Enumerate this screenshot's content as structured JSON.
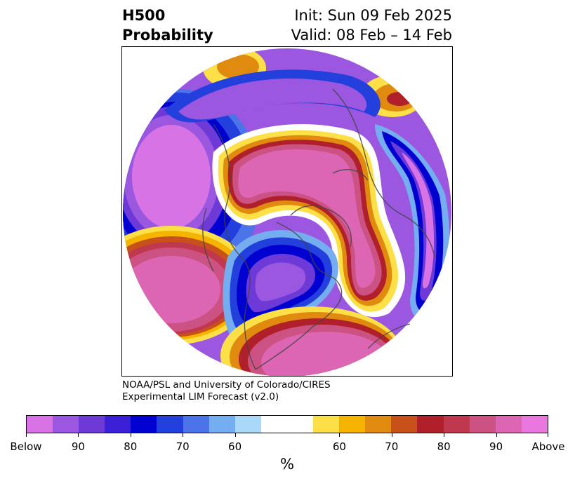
{
  "title": {
    "left_line1": "H500",
    "left_line2": "Probability",
    "right_line1": "Init: Sun 09 Feb 2025",
    "right_line2": "Valid: 08 Feb – 14 Feb"
  },
  "credit": {
    "line1": "NOAA/PSL and University of Colorado/CIRES",
    "line2": "Experimental LIM Forecast (v2.0)"
  },
  "colorbar": {
    "unit": "%",
    "segments": [
      "#d873e6",
      "#9b57e0",
      "#6d3ad8",
      "#3a1fd6",
      "#0000d0",
      "#2340dc",
      "#4c74e8",
      "#74aef0",
      "#aad8f8",
      "#ffffff",
      "#ffffff",
      "#fde047",
      "#f5b400",
      "#e08a10",
      "#c8501a",
      "#b0202a",
      "#c0384e",
      "#cc5283",
      "#dc66b4",
      "#e878e0"
    ],
    "tick_labels": [
      "Below",
      "90",
      "80",
      "70",
      "60",
      "60",
      "70",
      "80",
      "90",
      "Above"
    ]
  },
  "map": {
    "projection": "north-polar-stereographic",
    "field_colors": {
      "below_strong": "#d873e6",
      "below_mid": "#6d3ad8",
      "below_core": "#0000d0",
      "below_light": "#74aef0",
      "neutral": "#ffffff",
      "above_yellow": "#fde047",
      "above_orange": "#e08a10",
      "above_red": "#b0202a",
      "above_pink": "#cc5283",
      "above_strong": "#dc66b4",
      "coastline": "#444444"
    }
  }
}
